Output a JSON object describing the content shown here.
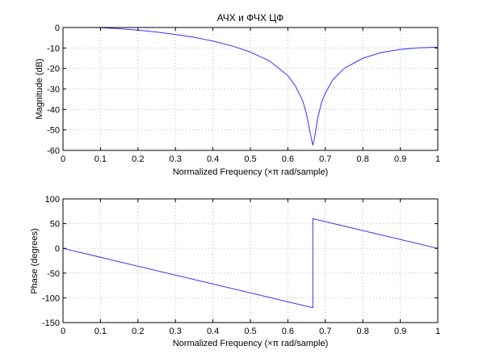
{
  "figure": {
    "title": "АЧХ и ФЧХ ЦФ",
    "line_color": "#3333ff",
    "grid": true,
    "grid_color": "#bbbbbb",
    "background": "#ffffff"
  },
  "chart_data": [
    {
      "type": "line",
      "name": "magnitude",
      "title": "АЧХ и ФЧХ ЦФ",
      "xlabel": "Normalized Frequency  (×π rad/sample)",
      "ylabel": "Magnitude (dB)",
      "xlim": [
        0,
        1
      ],
      "ylim": [
        -60,
        0
      ],
      "xticks": [
        0,
        0.1,
        0.2,
        0.3,
        0.4,
        0.5,
        0.6,
        0.7,
        0.8,
        0.9,
        1
      ],
      "xtick_labels": [
        "0",
        "0.1",
        "0.2",
        "0.3",
        "0.4",
        "0.5",
        "0.6",
        "0.7",
        "0.8",
        "0.9",
        "1"
      ],
      "yticks": [
        0,
        -10,
        -20,
        -30,
        -40,
        -50,
        -60
      ],
      "ytick_labels": [
        "0",
        "-10",
        "-20",
        "-30",
        "-40",
        "-50",
        "-60"
      ],
      "grid": true,
      "series": [
        {
          "x": [
            0.08,
            0.1,
            0.15,
            0.2,
            0.25,
            0.3,
            0.35,
            0.4,
            0.45,
            0.5,
            0.55,
            0.6,
            0.62,
            0.64,
            0.65,
            0.66,
            0.6667,
            0.673,
            0.68,
            0.69,
            0.7,
            0.72,
            0.75,
            0.8,
            0.85,
            0.9,
            0.95,
            1.0
          ],
          "y": [
            0,
            -0.1,
            -0.6,
            -1.3,
            -2.2,
            -3.4,
            -4.8,
            -6.6,
            -8.9,
            -12.0,
            -16.2,
            -23.5,
            -28.5,
            -36.0,
            -42.5,
            -52.0,
            -57.5,
            -52.0,
            -44.0,
            -36.5,
            -32.0,
            -25.5,
            -20.0,
            -15.0,
            -12.2,
            -10.7,
            -9.9,
            -9.6
          ]
        }
      ]
    },
    {
      "type": "line",
      "name": "phase",
      "xlabel": "Normalized Frequency  (×π rad/sample)",
      "ylabel": "Phase (degrees)",
      "xlim": [
        0,
        1
      ],
      "ylim": [
        -150,
        100
      ],
      "xticks": [
        0,
        0.1,
        0.2,
        0.3,
        0.4,
        0.5,
        0.6,
        0.7,
        0.8,
        0.9,
        1
      ],
      "xtick_labels": [
        "0",
        "0.1",
        "0.2",
        "0.3",
        "0.4",
        "0.5",
        "0.6",
        "0.7",
        "0.8",
        "0.9",
        "1"
      ],
      "yticks": [
        100,
        50,
        0,
        -50,
        -100,
        -150
      ],
      "ytick_labels": [
        "100",
        "50",
        "0",
        "-50",
        "-100",
        "-150"
      ],
      "grid": true,
      "series": [
        {
          "x": [
            0,
            0.6667,
            0.6667,
            1.0
          ],
          "y": [
            0,
            -120,
            60,
            0
          ]
        }
      ]
    }
  ]
}
